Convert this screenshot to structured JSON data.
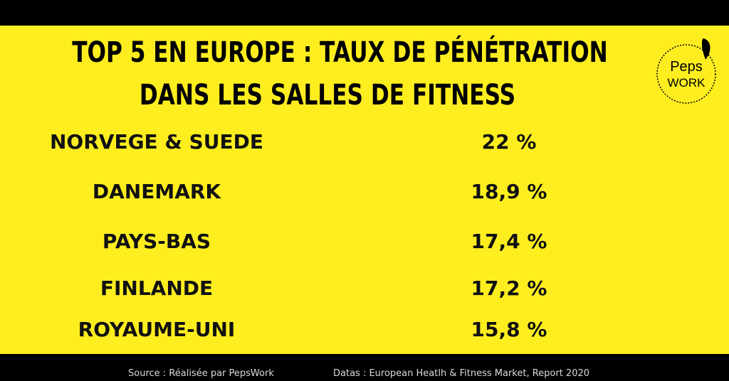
{
  "chart_data": {
    "type": "table",
    "title": "TOP 5 EN EUROPE : TAUX DE PÉNÉTRATION DANS LES SALLES DE FITNESS",
    "title_lines": [
      "TOP 5 EN EUROPE : TAUX DE PÉNÉTRATION",
      "DANS LES SALLES DE FITNESS"
    ],
    "rows": [
      {
        "label": "NORVEGE & SUEDE",
        "value": 22,
        "value_text": "22 %"
      },
      {
        "label": "DANEMARK",
        "value": 18.9,
        "value_text": "18,9 %"
      },
      {
        "label": "PAYS-BAS",
        "value": 17.4,
        "value_text": "17,4 %"
      },
      {
        "label": "FINLANDE",
        "value": 17.2,
        "value_text": "17,2 %"
      },
      {
        "label": "ROYAUME-UNI",
        "value": 15.8,
        "value_text": "15,8 %"
      }
    ]
  },
  "footer": {
    "source": "Source : Réalisée par PepsWork",
    "datas": "Datas : European Heatlh & Fitness Market, Report 2020"
  },
  "logo": {
    "line1": "Peps",
    "line2": "WORK"
  },
  "colors": {
    "background": "#ffee1f",
    "band": "#000000",
    "text": "#111111",
    "footer_text": "#d9d9d9"
  }
}
